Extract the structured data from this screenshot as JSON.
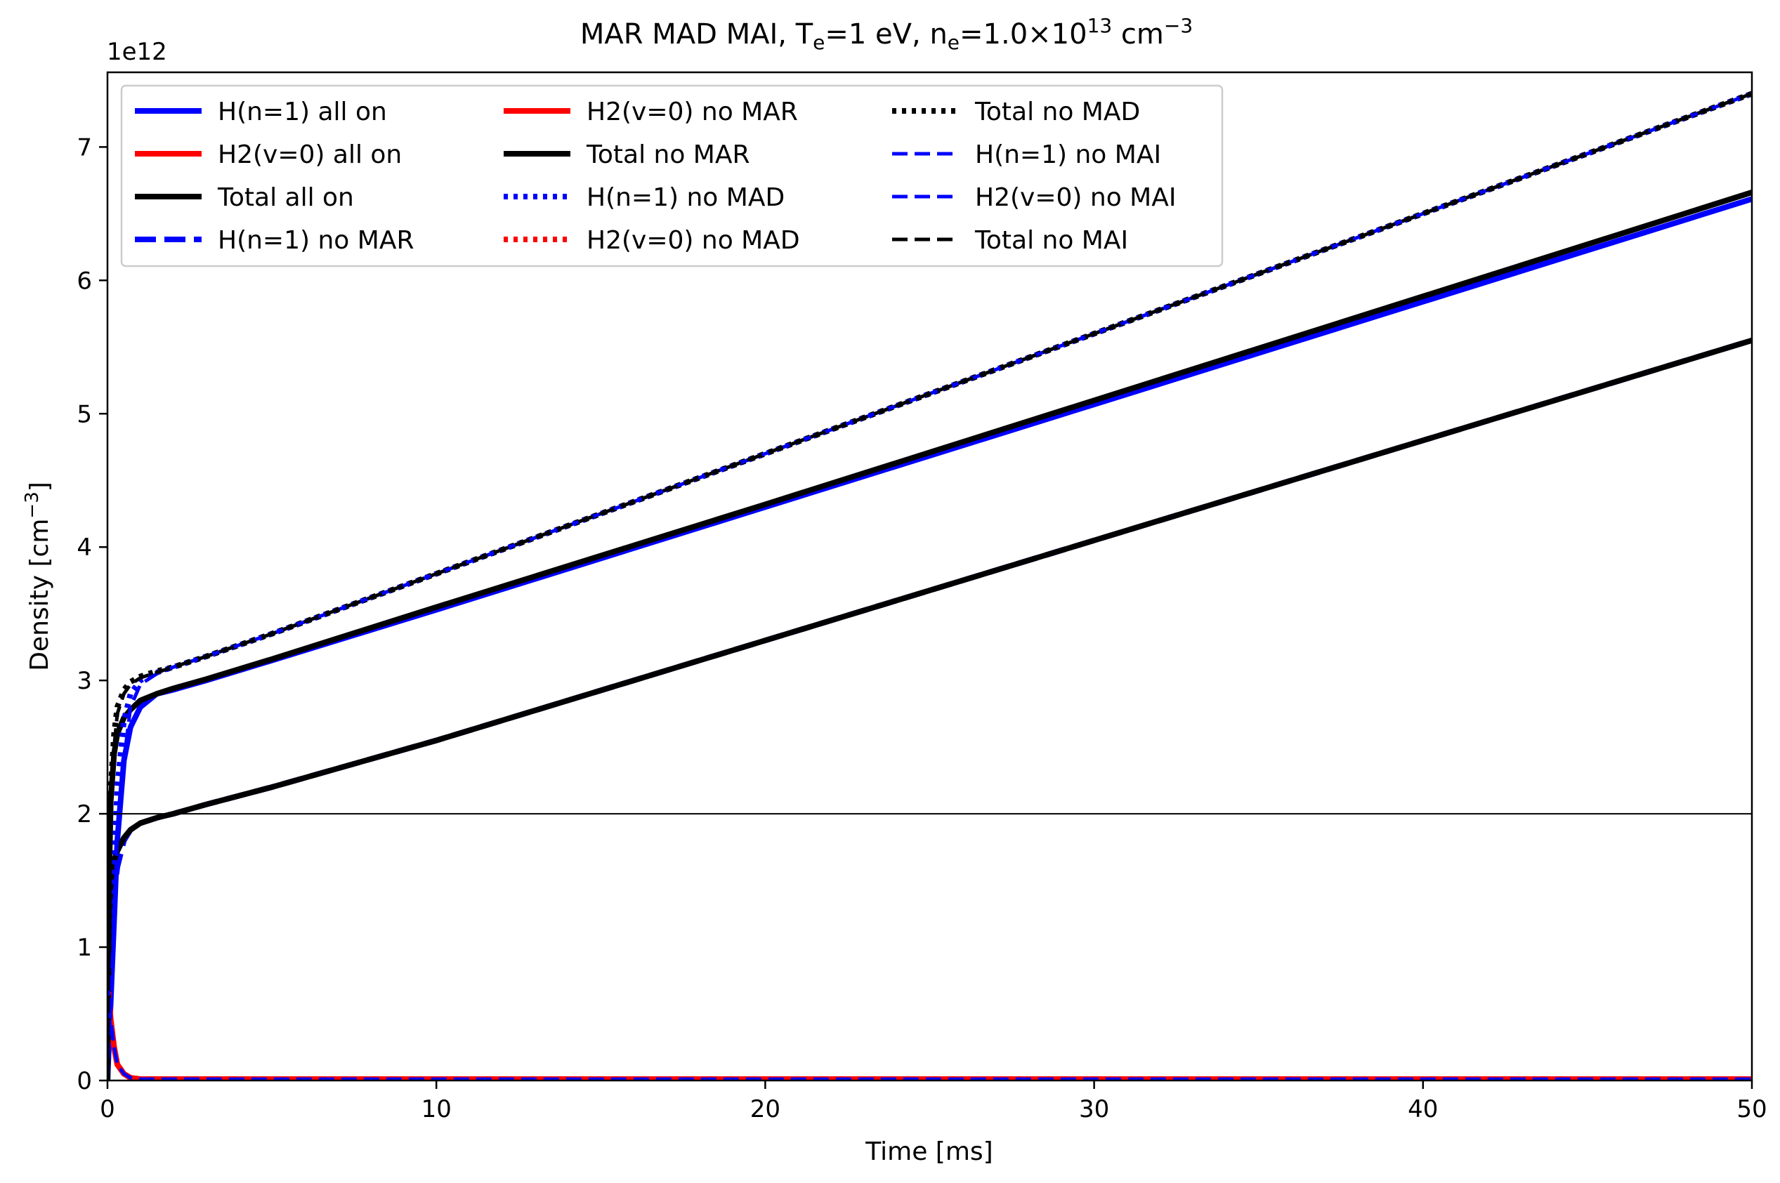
{
  "chart_data": {
    "type": "line",
    "title": "MAR MAD MAI,  T",
    "title_parts": {
      "sub1": "e",
      "mid": "=1 eV, n",
      "sub2": "e",
      "tail": "=1.0×10",
      "sup": "13",
      "unit": " cm",
      "unit_sup": "−3"
    },
    "xlabel": "Time [ms]",
    "ylabel": "Density [cm",
    "ylabel_sup": "−3",
    "ylabel_close": "]",
    "y_offset_label": "1e12",
    "xlim": [
      0,
      50
    ],
    "ylim": [
      0,
      7.56
    ],
    "x_ticks": [
      0,
      10,
      20,
      30,
      40,
      50
    ],
    "y_ticks": [
      0,
      1,
      2,
      3,
      4,
      5,
      6,
      7
    ],
    "hline_y": 2.0,
    "grid": false,
    "legend_placement": "upper-left",
    "legend_columns": 3,
    "colors": {
      "blue": "#0000ff",
      "red": "#ff0000",
      "black": "#000000"
    },
    "x": [
      0,
      0.05,
      0.1,
      0.2,
      0.3,
      0.5,
      0.7,
      1,
      1.5,
      2,
      3,
      5,
      10,
      20,
      30,
      40,
      50
    ],
    "series": [
      {
        "name": "H(n=1) all on",
        "color": "#0000ff",
        "style": "solid",
        "width": 8,
        "values": [
          0,
          0.3,
          0.6,
          1.2,
          1.8,
          2.4,
          2.65,
          2.8,
          2.9,
          2.93,
          3.0,
          3.15,
          3.53,
          4.3,
          5.07,
          5.84,
          6.61
        ]
      },
      {
        "name": "H2(v=0) all on",
        "color": "#ff0000",
        "style": "solid",
        "width": 8,
        "values": [
          0.75,
          0.6,
          0.45,
          0.25,
          0.12,
          0.05,
          0.02,
          0.01,
          0.01,
          0.01,
          0.01,
          0.01,
          0.01,
          0.01,
          0.01,
          0.01,
          0.01
        ]
      },
      {
        "name": "Total all on",
        "color": "#000000",
        "style": "solid",
        "width": 8,
        "values": [
          0,
          1.5,
          2.1,
          2.45,
          2.6,
          2.72,
          2.78,
          2.85,
          2.9,
          2.94,
          3.01,
          3.16,
          3.55,
          4.32,
          5.1,
          5.88,
          6.66
        ]
      },
      {
        "name": "H(n=1) no MAR",
        "color": "#0000ff",
        "style": "dashed-thick",
        "width": 8,
        "values": [
          0,
          0.6,
          1.0,
          1.4,
          1.6,
          1.8,
          1.88,
          1.93,
          1.97,
          2.0,
          2.07,
          2.2,
          2.55,
          3.3,
          4.05,
          4.8,
          5.55
        ]
      },
      {
        "name": "H2(v=0) no MAR",
        "color": "#ff0000",
        "style": "solid",
        "width": 8,
        "values": [
          0.75,
          0.6,
          0.45,
          0.25,
          0.12,
          0.05,
          0.02,
          0.01,
          0.01,
          0.01,
          0.01,
          0.01,
          0.01,
          0.01,
          0.01,
          0.01,
          0.01
        ]
      },
      {
        "name": "Total no MAR",
        "color": "#000000",
        "style": "solid",
        "width": 8,
        "values": [
          0,
          1.2,
          1.5,
          1.65,
          1.72,
          1.82,
          1.88,
          1.93,
          1.97,
          2.0,
          2.07,
          2.2,
          2.55,
          3.3,
          4.05,
          4.8,
          5.55
        ]
      },
      {
        "name": "H(n=1) no MAD",
        "color": "#0000ff",
        "style": "dotted",
        "width": 8,
        "values": [
          0,
          0.4,
          0.9,
          1.6,
          2.2,
          2.7,
          2.9,
          3.0,
          3.06,
          3.1,
          3.18,
          3.35,
          3.8,
          4.7,
          5.6,
          6.5,
          7.4
        ]
      },
      {
        "name": "H2(v=0) no MAD",
        "color": "#ff0000",
        "style": "dotted",
        "width": 8,
        "values": [
          0.75,
          0.6,
          0.45,
          0.25,
          0.12,
          0.05,
          0.02,
          0.01,
          0.01,
          0.01,
          0.01,
          0.01,
          0.01,
          0.01,
          0.01,
          0.01,
          0.01
        ]
      },
      {
        "name": "Total no MAD",
        "color": "#000000",
        "style": "dotted",
        "width": 8,
        "values": [
          0,
          1.6,
          2.2,
          2.6,
          2.8,
          2.93,
          2.99,
          3.03,
          3.07,
          3.1,
          3.18,
          3.35,
          3.8,
          4.7,
          5.6,
          6.5,
          7.4
        ]
      },
      {
        "name": "H(n=1) no MAI",
        "color": "#0000ff",
        "style": "dashed",
        "width": 5,
        "values": [
          0,
          0.3,
          0.6,
          1.2,
          1.8,
          2.4,
          2.8,
          2.97,
          3.05,
          3.1,
          3.18,
          3.35,
          3.8,
          4.7,
          5.6,
          6.5,
          7.4
        ]
      },
      {
        "name": "H2(v=0) no MAI",
        "color": "#0000ff",
        "style": "dashed",
        "width": 5,
        "values": [
          0.75,
          0.6,
          0.45,
          0.25,
          0.12,
          0.05,
          0.02,
          0.01,
          0.01,
          0.01,
          0.01,
          0.01,
          0.01,
          0.01,
          0.01,
          0.01,
          0.01
        ]
      },
      {
        "name": "Total no MAI",
        "color": "#000000",
        "style": "dashed",
        "width": 5,
        "values": [
          0,
          1.5,
          2.1,
          2.5,
          2.75,
          2.9,
          2.97,
          3.02,
          3.06,
          3.1,
          3.18,
          3.35,
          3.8,
          4.7,
          5.6,
          6.5,
          7.4
        ]
      }
    ]
  }
}
